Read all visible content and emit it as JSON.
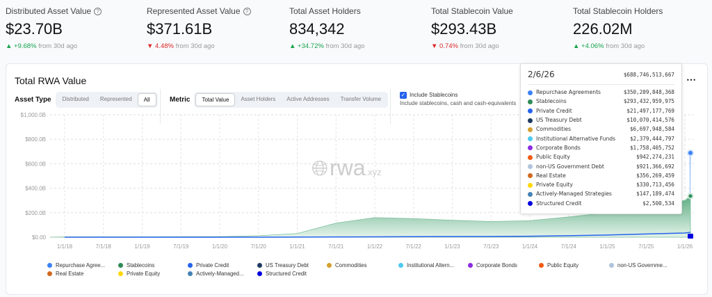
{
  "kpis": [
    {
      "label": "Distributed Asset Value",
      "help": true,
      "value": "$23.70B",
      "change": "+9.68%",
      "dir": "up",
      "suffix": "from 30d ago"
    },
    {
      "label": "Represented Asset Value",
      "help": true,
      "value": "$371.61B",
      "change": "4.48%",
      "dir": "down",
      "suffix": "from 30d ago"
    },
    {
      "label": "Total Asset Holders",
      "help": false,
      "value": "834,342",
      "change": "+34.72%",
      "dir": "up",
      "suffix": "from 30d ago"
    },
    {
      "label": "Total Stablecoin Value",
      "help": false,
      "value": "$293.43B",
      "change": "0.74%",
      "dir": "down",
      "suffix": "from 30d ago"
    },
    {
      "label": "Total Stablecoin Holders",
      "help": false,
      "value": "226.02M",
      "change": "+4.06%",
      "dir": "up",
      "suffix": "from 30d ago"
    }
  ],
  "card": {
    "title": "Total RWA Value",
    "asset_type": {
      "label": "Asset Type",
      "options": [
        "Distributed",
        "Represented",
        "All"
      ],
      "selected": "All"
    },
    "metric": {
      "label": "Metric",
      "options": [
        "Total Value",
        "Asset Holders",
        "Active Addresses",
        "Transfer Volume"
      ],
      "selected": "Total Value"
    },
    "stablecoins": {
      "checked": true,
      "label": "Include Stablecoins",
      "sub": "Include stablecoins, cash and cash-equivalents"
    },
    "more": "⋯",
    "watermark": "rwa",
    "watermark_suffix": ".xyz"
  },
  "tooltip": {
    "date": "2/6/26",
    "total": "$688,746,513,667",
    "rows": [
      {
        "name": "Repurchase Agreements",
        "value": "$350,209,848,368",
        "color": "#3b82f6"
      },
      {
        "name": "Stablecoins",
        "value": "$293,432,959,975",
        "color": "#2e8b57"
      },
      {
        "name": "Private Credit",
        "value": "$21,497,177,769",
        "color": "#2563eb"
      },
      {
        "name": "US Treasury Debt",
        "value": "$10,070,414,576",
        "color": "#1e3a5f"
      },
      {
        "name": "Commodities",
        "value": "$6,697,948,584",
        "color": "#d4a030"
      },
      {
        "name": "Institutional Alternative Funds",
        "value": "$2,379,444,797",
        "color": "#4cc9f0"
      },
      {
        "name": "Corporate Bonds",
        "value": "$1,758,405,752",
        "color": "#8b2be2"
      },
      {
        "name": "Public Equity",
        "value": "$942,274,231",
        "color": "#f05a14"
      },
      {
        "name": "non-US Government Debt",
        "value": "$921,366,692",
        "color": "#b0c4de"
      },
      {
        "name": "Real Estate",
        "value": "$356,269,459",
        "color": "#d2691e"
      },
      {
        "name": "Private Equity",
        "value": "$330,713,456",
        "color": "#ffd700"
      },
      {
        "name": "Actively-Managed Strategies",
        "value": "$147,189,474",
        "color": "#4682b4"
      },
      {
        "name": "Structured Credit",
        "value": "$2,500,534",
        "color": "#0000e0"
      }
    ]
  },
  "legend": [
    "Repurchase Agree...",
    "Stablecoins",
    "Private Credit",
    "US Treasury Debt",
    "Commodities",
    "Institutional Altern...",
    "Corporate Bonds",
    "Public Equity",
    "non-US Governme...",
    "Real Estate",
    "Private Equity",
    "Actively-Managed...",
    "Structured Credit"
  ],
  "chart_data": {
    "type": "area",
    "ylim": [
      0,
      1000
    ],
    "grid": true,
    "yticks": [
      "$0.00",
      "$200.0B",
      "$400.0B",
      "$600.0B",
      "$800.0B",
      "$1,000.0B"
    ],
    "xticks": [
      "1/1/18",
      "7/1/18",
      "1/1/19",
      "7/1/19",
      "1/1/20",
      "7/1/20",
      "1/1/21",
      "7/1/21",
      "1/1/22",
      "7/1/22",
      "1/1/23",
      "7/1/23",
      "1/1/24",
      "7/1/24",
      "1/1/25",
      "7/1/25",
      "1/1/26"
    ],
    "x": [
      "1/1/18",
      "7/1/18",
      "1/1/19",
      "7/1/19",
      "1/1/20",
      "7/1/20",
      "1/1/21",
      "7/1/21",
      "1/1/22",
      "7/1/22",
      "1/1/23",
      "7/1/23",
      "1/1/24",
      "7/1/24",
      "1/1/25",
      "7/1/25",
      "1/1/26",
      "2/6/26"
    ],
    "series": [
      {
        "name": "Stablecoins",
        "color": "#2e8b57",
        "values": [
          2,
          3,
          3,
          4,
          5,
          12,
          30,
          115,
          160,
          152,
          138,
          128,
          135,
          165,
          200,
          260,
          300,
          336
        ]
      },
      {
        "name": "Private Credit",
        "color": "#2563eb",
        "values": [
          0,
          0,
          0,
          0,
          0,
          0,
          1,
          2,
          3,
          4,
          5,
          6,
          8,
          12,
          18,
          26,
          34,
          40
        ]
      },
      {
        "name": "Repurchase Agreements",
        "color": "#3b82f6",
        "values": [
          0,
          0,
          0,
          0,
          0,
          0,
          0,
          0,
          0,
          0,
          0,
          0,
          0,
          0,
          0,
          0,
          0,
          688
        ]
      }
    ]
  }
}
